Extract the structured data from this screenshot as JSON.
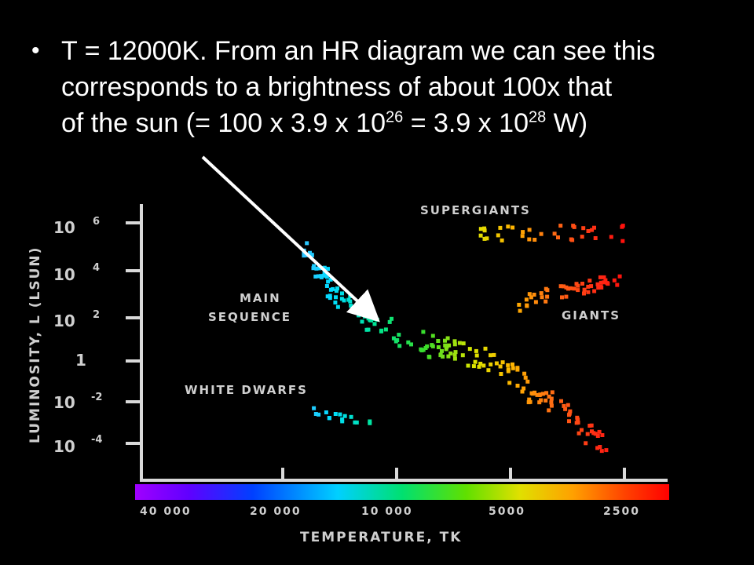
{
  "text": {
    "bullet_symbol": "•",
    "line1": "T = 12000K. From an HR diagram we can see this",
    "line2": "corresponds to a brightness of about 100x that",
    "line3_a": "of the sun (= 100 x 3.9 x 10",
    "line3_exp1": "26",
    "line3_b": " = 3.9 x 10",
    "line3_exp2": "28",
    "line3_c": " W)"
  },
  "diagram": {
    "y_axis_label": "LUMINOSITY, L (LSUN)",
    "x_axis_label": "TEMPERATURE, TK",
    "y_ticks": [
      {
        "base": "10",
        "exp": "6"
      },
      {
        "base": "10",
        "exp": "4"
      },
      {
        "base": "10",
        "exp": "2"
      },
      {
        "base": "1",
        "exp": ""
      },
      {
        "base": "10",
        "exp": "-2"
      },
      {
        "base": "10",
        "exp": "-4"
      }
    ],
    "x_ticks": [
      "40 000",
      "20 000",
      "10 000",
      "5000",
      "2500"
    ],
    "region_labels": {
      "supergiants": "SUPERGIANTS",
      "main_line1": "MAIN",
      "main_line2": "SEQUENCE",
      "giants": "GIANTS",
      "white_dwarfs": "WHITE DWARFS"
    },
    "colors": {
      "axis": "#d9d9d9",
      "arrow": "#ffffff",
      "spectrum": [
        "#a000ff",
        "#5000ff",
        "#0050ff",
        "#00c8ff",
        "#00e070",
        "#40e000",
        "#d0e000",
        "#ffb000",
        "#ff5000",
        "#ff0000"
      ]
    }
  }
}
